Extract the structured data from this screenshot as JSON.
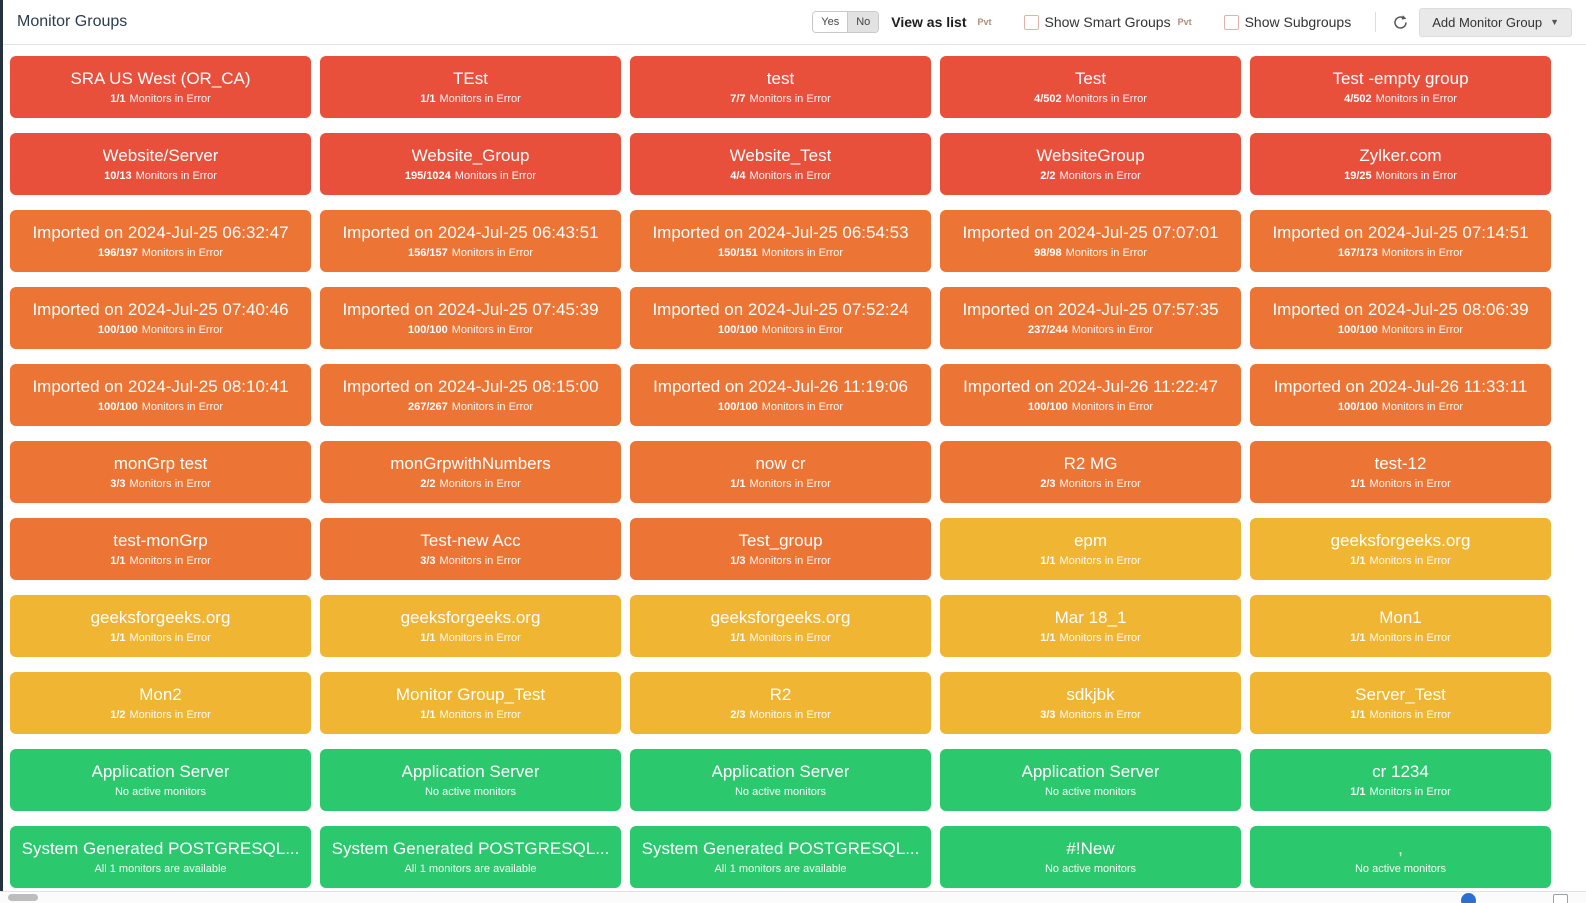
{
  "header": {
    "title": "Monitor Groups",
    "toggle": {
      "yes": "Yes",
      "no": "No"
    },
    "view_as_list": "View as list",
    "pvt": "Pvt",
    "show_smart_groups": "Show Smart Groups",
    "show_subgroups": "Show Subgroups",
    "add_button": "Add Monitor Group"
  },
  "status_colors": {
    "red": "#e8503c",
    "orange": "#ec7434",
    "yellow": "#f0b533",
    "green": "#2cc86e"
  },
  "grid": {
    "tiles": [
      {
        "name": "SRA US West (OR_CA)",
        "color": "red",
        "count": "1/1",
        "status": "Monitors in Error"
      },
      {
        "name": "TEst",
        "color": "red",
        "count": "1/1",
        "status": "Monitors in Error"
      },
      {
        "name": "test",
        "color": "red",
        "count": "7/7",
        "status": "Monitors in Error"
      },
      {
        "name": "Test",
        "color": "red",
        "count": "4/502",
        "status": "Monitors in Error"
      },
      {
        "name": "Test -empty group",
        "color": "red",
        "count": "4/502",
        "status": "Monitors in Error"
      },
      {
        "name": "Website/Server",
        "color": "red",
        "count": "10/13",
        "status": "Monitors in Error"
      },
      {
        "name": "Website_Group",
        "color": "red",
        "count": "195/1024",
        "status": "Monitors in Error"
      },
      {
        "name": "Website_Test",
        "color": "red",
        "count": "4/4",
        "status": "Monitors in Error"
      },
      {
        "name": "WebsiteGroup",
        "color": "red",
        "count": "2/2",
        "status": "Monitors in Error"
      },
      {
        "name": "Zylker.com",
        "color": "red",
        "count": "19/25",
        "status": "Monitors in Error"
      },
      {
        "name": "Imported on 2024-Jul-25 06:32:47",
        "color": "orange",
        "count": "196/197",
        "status": "Monitors in Error"
      },
      {
        "name": "Imported on 2024-Jul-25 06:43:51",
        "color": "orange",
        "count": "156/157",
        "status": "Monitors in Error"
      },
      {
        "name": "Imported on 2024-Jul-25 06:54:53",
        "color": "orange",
        "count": "150/151",
        "status": "Monitors in Error"
      },
      {
        "name": "Imported on 2024-Jul-25 07:07:01",
        "color": "orange",
        "count": "98/98",
        "status": "Monitors in Error"
      },
      {
        "name": "Imported on 2024-Jul-25 07:14:51",
        "color": "orange",
        "count": "167/173",
        "status": "Monitors in Error"
      },
      {
        "name": "Imported on 2024-Jul-25 07:40:46",
        "color": "orange",
        "count": "100/100",
        "status": "Monitors in Error"
      },
      {
        "name": "Imported on 2024-Jul-25 07:45:39",
        "color": "orange",
        "count": "100/100",
        "status": "Monitors in Error"
      },
      {
        "name": "Imported on 2024-Jul-25 07:52:24",
        "color": "orange",
        "count": "100/100",
        "status": "Monitors in Error"
      },
      {
        "name": "Imported on 2024-Jul-25 07:57:35",
        "color": "orange",
        "count": "237/244",
        "status": "Monitors in Error"
      },
      {
        "name": "Imported on 2024-Jul-25 08:06:39",
        "color": "orange",
        "count": "100/100",
        "status": "Monitors in Error"
      },
      {
        "name": "Imported on 2024-Jul-25 08:10:41",
        "color": "orange",
        "count": "100/100",
        "status": "Monitors in Error"
      },
      {
        "name": "Imported on 2024-Jul-25 08:15:00",
        "color": "orange",
        "count": "267/267",
        "status": "Monitors in Error"
      },
      {
        "name": "Imported on 2024-Jul-26 11:19:06",
        "color": "orange",
        "count": "100/100",
        "status": "Monitors in Error"
      },
      {
        "name": "Imported on 2024-Jul-26 11:22:47",
        "color": "orange",
        "count": "100/100",
        "status": "Monitors in Error"
      },
      {
        "name": "Imported on 2024-Jul-26 11:33:11",
        "color": "orange",
        "count": "100/100",
        "status": "Monitors in Error"
      },
      {
        "name": "monGrp test",
        "color": "orange",
        "count": "3/3",
        "status": "Monitors in Error"
      },
      {
        "name": "monGrpwithNumbers",
        "color": "orange",
        "count": "2/2",
        "status": "Monitors in Error"
      },
      {
        "name": "now cr",
        "color": "orange",
        "count": "1/1",
        "status": "Monitors in Error"
      },
      {
        "name": "R2 MG",
        "color": "orange",
        "count": "2/3",
        "status": "Monitors in Error"
      },
      {
        "name": "test-12",
        "color": "orange",
        "count": "1/1",
        "status": "Monitors in Error"
      },
      {
        "name": "test-monGrp",
        "color": "orange",
        "count": "1/1",
        "status": "Monitors in Error"
      },
      {
        "name": "Test-new Acc",
        "color": "orange",
        "count": "3/3",
        "status": "Monitors in Error"
      },
      {
        "name": "Test_group",
        "color": "orange",
        "count": "1/3",
        "status": "Monitors in Error"
      },
      {
        "name": "epm",
        "color": "yellow",
        "count": "1/1",
        "status": "Monitors in Error"
      },
      {
        "name": "geeksforgeeks.org",
        "color": "yellow",
        "count": "1/1",
        "status": "Monitors in Error"
      },
      {
        "name": "geeksforgeeks.org",
        "color": "yellow",
        "count": "1/1",
        "status": "Monitors in Error"
      },
      {
        "name": "geeksforgeeks.org",
        "color": "yellow",
        "count": "1/1",
        "status": "Monitors in Error"
      },
      {
        "name": "geeksforgeeks.org",
        "color": "yellow",
        "count": "1/1",
        "status": "Monitors in Error"
      },
      {
        "name": "Mar 18_1",
        "color": "yellow",
        "count": "1/1",
        "status": "Monitors in Error"
      },
      {
        "name": "Mon1",
        "color": "yellow",
        "count": "1/1",
        "status": "Monitors in Error"
      },
      {
        "name": "Mon2",
        "color": "yellow",
        "count": "1/2",
        "status": "Monitors in Error"
      },
      {
        "name": "Monitor Group_Test",
        "color": "yellow",
        "count": "1/1",
        "status": "Monitors in Error"
      },
      {
        "name": "R2",
        "color": "yellow",
        "count": "2/3",
        "status": "Monitors in Error"
      },
      {
        "name": "sdkjbk",
        "color": "yellow",
        "count": "3/3",
        "status": "Monitors in Error"
      },
      {
        "name": "Server_Test",
        "color": "yellow",
        "count": "1/1",
        "status": "Monitors in Error"
      },
      {
        "name": "Application Server",
        "color": "green",
        "count": "",
        "status": "No active monitors"
      },
      {
        "name": "Application Server",
        "color": "green",
        "count": "",
        "status": "No active monitors"
      },
      {
        "name": "Application Server",
        "color": "green",
        "count": "",
        "status": "No active monitors"
      },
      {
        "name": "Application Server",
        "color": "green",
        "count": "",
        "status": "No active monitors"
      },
      {
        "name": "cr 1234",
        "color": "green",
        "count": "1/1",
        "status": "Monitors in Error"
      },
      {
        "name": "System Generated POSTGRESQL...",
        "color": "green",
        "count": "",
        "status": "All 1 monitors are available"
      },
      {
        "name": "System Generated POSTGRESQL...",
        "color": "green",
        "count": "",
        "status": "All 1 monitors are available"
      },
      {
        "name": "System Generated POSTGRESQL...",
        "color": "green",
        "count": "",
        "status": "All 1 monitors are available"
      },
      {
        "name": "#!New",
        "color": "green",
        "count": "",
        "status": "No active monitors"
      },
      {
        "name": ",",
        "color": "green",
        "count": "",
        "status": "No active monitors"
      }
    ]
  }
}
